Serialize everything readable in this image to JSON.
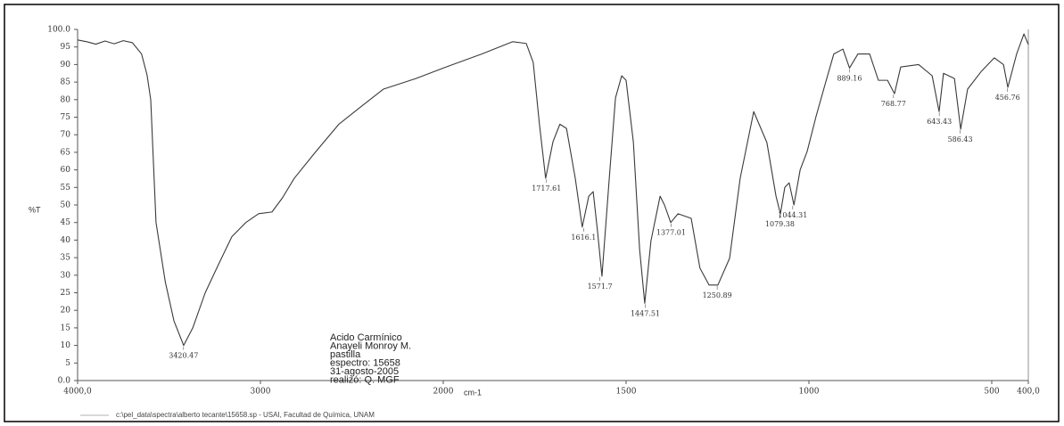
{
  "chart_data": {
    "type": "line",
    "y_label": "%T",
    "x_label": "cm-1",
    "xlim": [
      4000,
      400
    ],
    "ylim": [
      0,
      100
    ],
    "x_scale_break": 2000,
    "xticks": [
      {
        "value": 4000,
        "label": "4000,0"
      },
      3000,
      2000,
      1500,
      1000,
      500,
      {
        "value": 400,
        "label": "400,0"
      }
    ],
    "yticks": [
      {
        "value": 0,
        "label": "0.0"
      },
      5,
      10,
      15,
      20,
      25,
      30,
      35,
      40,
      45,
      50,
      55,
      60,
      65,
      70,
      75,
      80,
      85,
      90,
      95,
      {
        "value": 100,
        "label": "100.0"
      }
    ],
    "grid": false,
    "color": "#3a3a3a",
    "x": [
      4000,
      3950,
      3900,
      3850,
      3800,
      3750,
      3700,
      3650,
      3620,
      3600,
      3571,
      3520,
      3473,
      3420,
      3370,
      3302,
      3230,
      3156,
      3080,
      3010,
      2937,
      2880,
      2815,
      2700,
      2571,
      2450,
      2327,
      2150,
      2000,
      1895,
      1810,
      1773,
      1754,
      1737,
      1720,
      1700,
      1681,
      1663,
      1639,
      1620,
      1602,
      1590,
      1578,
      1566,
      1546,
      1529,
      1512,
      1500,
      1480,
      1463,
      1449,
      1432,
      1407,
      1395,
      1378,
      1358,
      1322,
      1298,
      1273,
      1249,
      1217,
      1188,
      1151,
      1115,
      1090,
      1078,
      1066,
      1054,
      1041,
      1024,
      1005,
      980,
      956,
      932,
      907,
      889,
      866,
      834,
      810,
      785,
      766,
      749,
      700,
      663,
      644,
      632,
      602,
      585,
      566,
      529,
      493,
      468,
      456,
      432,
      412,
      400
    ],
    "values": [
      97,
      96.5,
      95.8,
      96.7,
      95.9,
      96.8,
      96.2,
      93,
      87,
      80,
      45,
      28,
      17,
      10,
      15,
      25,
      33,
      41,
      45,
      47.5,
      48,
      52,
      57.6,
      65,
      73,
      78,
      83,
      86,
      89,
      93,
      96.5,
      96,
      90.6,
      73,
      57.6,
      68,
      73,
      71.8,
      57.6,
      43.7,
      52.5,
      53.8,
      42.4,
      29.7,
      57.6,
      80.5,
      86.8,
      85.5,
      67.8,
      37.3,
      22,
      39.8,
      52.5,
      50,
      45,
      47.5,
      46.2,
      32,
      27.2,
      27.2,
      34.8,
      57.6,
      76.6,
      67.8,
      52.5,
      47.5,
      55,
      56.3,
      50,
      60,
      65.2,
      75.4,
      84.3,
      93,
      94.4,
      89,
      93,
      93,
      85.5,
      85.5,
      81.7,
      89.3,
      90,
      86.8,
      76.6,
      87.5,
      86,
      71.6,
      83,
      88,
      91.9,
      90,
      83.5,
      93,
      98.7,
      95.7
    ],
    "peaks": {
      "x": [
        3420.47,
        1717.61,
        1616.1,
        1571.7,
        1447.51,
        1377.01,
        1250.89,
        1079.38,
        1044.31,
        889.16,
        768.77,
        643.43,
        586.43,
        456.76
      ],
      "y": [
        10,
        57.6,
        43.7,
        29.7,
        22,
        45,
        27.2,
        47.5,
        50,
        89,
        81.7,
        76.6,
        71.6,
        83.5
      ]
    },
    "annotations": [
      "Acido Carmínico",
      "Anayeli Monroy M.",
      "pastilla",
      "espectro: 15658",
      "31-agosto-2005",
      "realizó: Q. MGF"
    ],
    "footer": "c:\\pel_data\\spectra\\alberto tecante\\15658.sp - USAI, Facultad de Química, UNAM"
  }
}
